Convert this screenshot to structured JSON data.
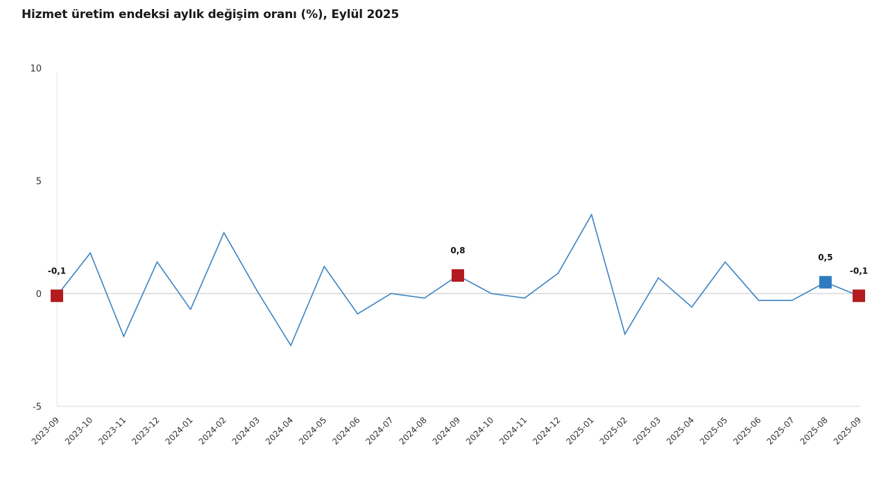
{
  "title": "Hizmet üretim endeksi aylık değişim oranı (%), Eylül 2025",
  "colors": {
    "line": "#3b82c0",
    "marker_red": "#b31b1f",
    "marker_blue": "#2f7bbf",
    "zero_line": "#d9d9d9",
    "axis_line": "#e6e6e6"
  },
  "chart_data": {
    "type": "line",
    "title": "Hizmet üretim endeksi aylık değişim oranı (%), Eylül 2025",
    "xlabel": "",
    "ylabel": "",
    "ylim": [
      -5,
      10
    ],
    "yticks": [
      "10",
      "5",
      "0",
      "-5"
    ],
    "ytick_values": [
      10,
      5,
      0,
      -5
    ],
    "grid": false,
    "legend": null,
    "categories": [
      "2023-09",
      "2023-10",
      "2023-11",
      "2023-12",
      "2024-01",
      "2024-02",
      "2024-03",
      "2024-04",
      "2024-05",
      "2024-06",
      "2024-07",
      "2024-08",
      "2024-09",
      "2024-10",
      "2024-11",
      "2024-12",
      "2025-01",
      "2025-02",
      "2025-03",
      "2025-04",
      "2025-05",
      "2025-06",
      "2025-07",
      "2025-08",
      "2025-09"
    ],
    "series": [
      {
        "name": "Aylık değişim oranı (%)",
        "values": [
          -0.1,
          1.8,
          -1.9,
          1.4,
          -0.7,
          2.7,
          0.1,
          -2.3,
          1.2,
          -0.9,
          0.0,
          -0.2,
          0.8,
          0.0,
          -0.2,
          0.9,
          3.5,
          -1.8,
          0.7,
          -0.6,
          1.4,
          -0.3,
          -0.3,
          0.5,
          -0.1
        ]
      }
    ],
    "annotations": [
      {
        "index": 0,
        "label": "-0,1",
        "marker": "red"
      },
      {
        "index": 12,
        "label": "0,8",
        "marker": "red"
      },
      {
        "index": 23,
        "label": "0,5",
        "marker": "blue"
      },
      {
        "index": 24,
        "label": "-0,1",
        "marker": "red"
      }
    ]
  }
}
